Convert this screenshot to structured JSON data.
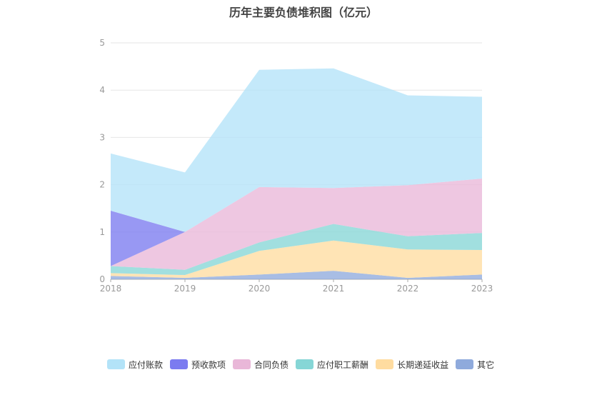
{
  "chart_data": {
    "type": "area",
    "stacked": true,
    "title": "历年主要负债堆积图（亿元）",
    "categories": [
      "2018",
      "2019",
      "2020",
      "2021",
      "2022",
      "2023"
    ],
    "ylim": [
      0,
      5
    ],
    "yticks": [
      "0",
      "1",
      "2",
      "3",
      "4",
      "5"
    ],
    "grid": true,
    "legend_position": "bottom",
    "series": [
      {
        "name": "其它",
        "color": "#8faadc",
        "values": [
          0.07,
          0.03,
          0.1,
          0.18,
          0.03,
          0.1
        ]
      },
      {
        "name": "长期递延收益",
        "color": "#ffdca0",
        "values": [
          0.06,
          0.06,
          0.5,
          0.64,
          0.6,
          0.52
        ]
      },
      {
        "name": "应付职工薪酬",
        "color": "#86d6d6",
        "values": [
          0.15,
          0.11,
          0.18,
          0.35,
          0.28,
          0.36
        ]
      },
      {
        "name": "合同负债",
        "color": "#e9b7d8",
        "values": [
          0.0,
          0.8,
          1.17,
          0.76,
          1.08,
          1.15
        ]
      },
      {
        "name": "预收款项",
        "color": "#7b7bf0",
        "values": [
          1.17,
          0.0,
          0.0,
          0.0,
          0.0,
          0.0
        ]
      },
      {
        "name": "应付账款",
        "color": "#b3e3f8",
        "values": [
          1.21,
          1.26,
          2.48,
          2.53,
          1.9,
          1.73
        ]
      }
    ]
  },
  "legend_order": [
    "应付账款",
    "预收款项",
    "合同负债",
    "应付职工薪酬",
    "长期递延收益",
    "其它"
  ]
}
